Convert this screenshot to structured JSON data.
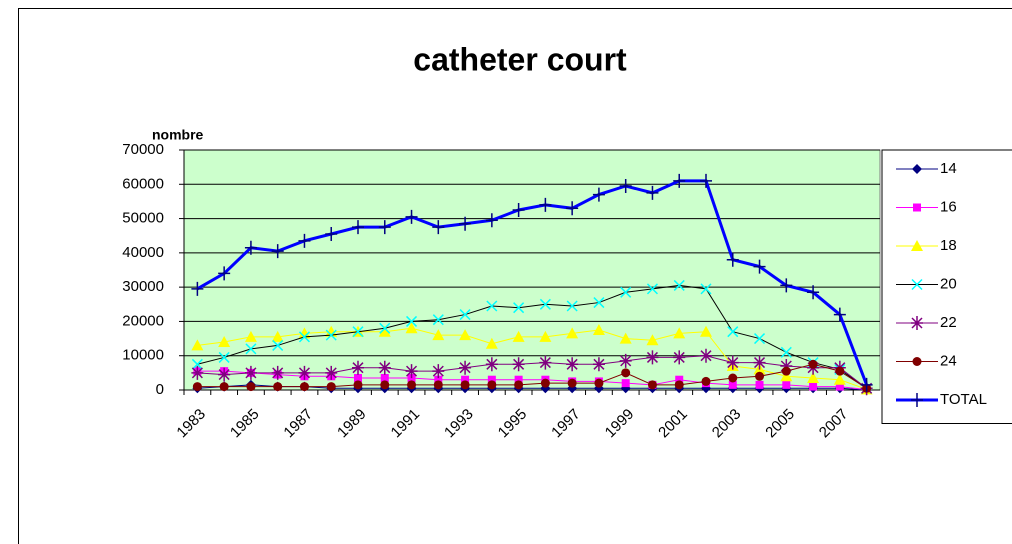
{
  "chart_data": {
    "type": "line",
    "title": "catheter court",
    "y_label": "nombre",
    "categories": [
      "1983",
      null,
      "1985",
      null,
      "1987",
      null,
      "1989",
      null,
      "1991",
      null,
      "1993",
      null,
      "1995",
      null,
      "1997",
      null,
      "1999",
      null,
      "2001",
      null,
      "2003",
      null,
      "2005",
      null,
      "2007",
      null
    ],
    "ylim": [
      0,
      70000
    ],
    "yticks": [
      0,
      10000,
      20000,
      30000,
      40000,
      50000,
      60000,
      70000
    ],
    "grid": true,
    "legend": "right",
    "background": "#ccffcc",
    "series": [
      {
        "name": "14",
        "color": "#000080",
        "marker": "diamond",
        "marker_color": "#000080",
        "line_width": 1,
        "values": [
          500,
          1000,
          1500,
          1000,
          1000,
          500,
          500,
          500,
          500,
          500,
          500,
          500,
          500,
          500,
          500,
          500,
          500,
          500,
          500,
          500,
          500,
          500,
          500,
          500,
          500,
          0
        ]
      },
      {
        "name": "16",
        "color": "#ff00ff",
        "marker": "square",
        "marker_color": "#ff00ff",
        "line_width": 1,
        "values": [
          5500,
          5500,
          5000,
          4500,
          4000,
          4000,
          3500,
          3500,
          3500,
          3000,
          3000,
          3000,
          3000,
          3000,
          2500,
          2500,
          2000,
          1500,
          3000,
          2000,
          1500,
          1500,
          1500,
          1000,
          1000,
          100
        ]
      },
      {
        "name": "18",
        "color": "#ffff00",
        "marker": "triangle",
        "marker_color": "#ffff00",
        "line_width": 1,
        "values": [
          13000,
          14000,
          15500,
          15500,
          16500,
          17000,
          17000,
          17000,
          18000,
          16000,
          16000,
          13500,
          15500,
          15500,
          16500,
          17500,
          15000,
          14500,
          16500,
          17000,
          7000,
          6000,
          4000,
          3500,
          3000,
          200
        ]
      },
      {
        "name": "20",
        "color": "#000000",
        "marker": "x",
        "marker_color": "#00ffff",
        "line_width": 1,
        "values": [
          7500,
          9500,
          12000,
          13000,
          15500,
          16000,
          17000,
          18000,
          20000,
          20500,
          22000,
          24500,
          24000,
          25000,
          24500,
          25500,
          28500,
          29500,
          30500,
          29500,
          17000,
          15000,
          11000,
          8000,
          6000,
          500
        ]
      },
      {
        "name": "22",
        "color": "#800080",
        "marker": "star",
        "marker_color": "#800080",
        "line_width": 1,
        "values": [
          5000,
          4500,
          5000,
          5000,
          5000,
          5000,
          6500,
          6500,
          5500,
          5500,
          6500,
          7500,
          7500,
          8000,
          7500,
          7500,
          8500,
          9500,
          9500,
          10000,
          8000,
          8000,
          7000,
          6500,
          6500,
          500
        ]
      },
      {
        "name": "24",
        "color": "#800000",
        "marker": "circle",
        "marker_color": "#800000",
        "line_width": 1,
        "values": [
          1000,
          1000,
          1000,
          1000,
          1000,
          1000,
          1500,
          1500,
          1500,
          1500,
          1500,
          1500,
          1500,
          2000,
          2000,
          2000,
          5000,
          1500,
          1500,
          2500,
          3500,
          4000,
          5500,
          7500,
          5500,
          500
        ]
      },
      {
        "name": "TOTAL",
        "color": "#0000ff",
        "marker": "plus",
        "marker_color": "#000080",
        "line_width": 3,
        "values": [
          29500,
          34000,
          41500,
          40500,
          43500,
          45500,
          47500,
          47500,
          50500,
          47500,
          48500,
          49500,
          52500,
          54000,
          53000,
          57000,
          59500,
          57500,
          61000,
          61000,
          38000,
          36000,
          30500,
          28500,
          22000,
          1500
        ]
      }
    ]
  }
}
